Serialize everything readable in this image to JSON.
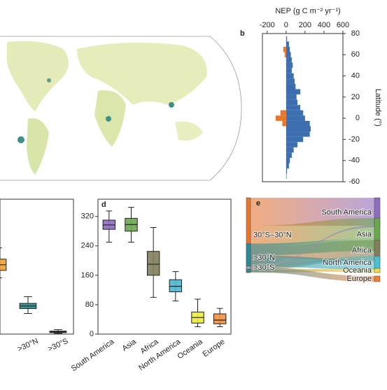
{
  "chart_data": [
    {
      "type": "bar",
      "orientation": "horizontal",
      "panel": "b",
      "title": "NEP (g C m⁻² yr⁻¹)",
      "y_label": "Latitude (°)",
      "y": [
        75,
        70,
        65,
        60,
        55,
        50,
        45,
        40,
        35,
        30,
        25,
        20,
        15,
        10,
        5,
        0,
        -5,
        -10,
        -15,
        -20,
        -25,
        -30,
        -35,
        -40,
        -45,
        -50,
        -55
      ],
      "series": [
        {
          "color": "#3d6fb0",
          "values": [
            10,
            30,
            40,
            50,
            60,
            70,
            60,
            80,
            90,
            100,
            150,
            110,
            120,
            150,
            180,
            200,
            250,
            260,
            250,
            180,
            120,
            80,
            60,
            40,
            30,
            10,
            5
          ]
        },
        {
          "color": "#e8762b",
          "values": [
            null,
            null,
            -30,
            -15,
            null,
            null,
            null,
            null,
            null,
            null,
            null,
            null,
            null,
            null,
            -60,
            -110,
            -40,
            null,
            null,
            null,
            null,
            null,
            null,
            null,
            null,
            null,
            null
          ]
        }
      ],
      "xlim": [
        -250,
        600
      ],
      "xticks": [
        -200,
        0,
        200,
        400,
        600
      ],
      "ylim": [
        -60,
        80
      ],
      "yticks": [
        -60,
        -40,
        -20,
        0,
        20,
        40,
        60,
        80
      ]
    },
    {
      "type": "box",
      "categories": [
        null,
        ">30°N",
        ">30°S"
      ],
      "colors": [
        "#f0a030",
        "#2a8a8c",
        "#333333"
      ],
      "min": [
        150,
        55,
        2
      ],
      "q1": [
        170,
        68,
        4
      ],
      "median": [
        185,
        75,
        6
      ],
      "q3": [
        200,
        82,
        8
      ],
      "max": [
        230,
        100,
        12
      ],
      "ylim": [
        0,
        360
      ]
    },
    {
      "type": "box",
      "panel": "d",
      "categories": [
        "South America",
        "Asia",
        "Africa",
        "North America",
        "Oceania",
        "Europe"
      ],
      "colors": [
        "#8e6bbf",
        "#6aa84f",
        "#7f7f5a",
        "#4bb6d0",
        "#ecec3c",
        "#f39040"
      ],
      "min": [
        250,
        250,
        100,
        90,
        20,
        20
      ],
      "q1": [
        285,
        280,
        160,
        115,
        30,
        28
      ],
      "median": [
        297,
        298,
        190,
        130,
        45,
        38
      ],
      "q3": [
        310,
        315,
        225,
        148,
        60,
        55
      ],
      "max": [
        335,
        345,
        290,
        170,
        95,
        70
      ],
      "ylim": [
        0,
        367
      ],
      "yticks": [
        0,
        80,
        160,
        240,
        320
      ]
    },
    {
      "type": "sankey",
      "panel": "e",
      "nodes": [
        {
          "label": "30°S–30°N",
          "color": "#e8772e"
        },
        {
          "label": ">30°N",
          "color": "#2a8a9a"
        },
        {
          "label": ">30°S",
          "color": "#aaaaaa"
        },
        {
          "label": "South America",
          "color": "#8e6bbf"
        },
        {
          "label": "Asia",
          "color": "#6aa84f"
        },
        {
          "label": "Africa",
          "color": "#7f7f5a"
        },
        {
          "label": "North America",
          "color": "#4bc0d0"
        },
        {
          "label": "Oceania",
          "color": "#f0e040"
        },
        {
          "label": "Europe",
          "color": "#f08030"
        }
      ],
      "links": [
        {
          "source": 0,
          "target": 3,
          "value": 40
        },
        {
          "source": 0,
          "target": 4,
          "value": 30
        },
        {
          "source": 0,
          "target": 5,
          "value": 28
        },
        {
          "source": 0,
          "target": 6,
          "value": 5
        },
        {
          "source": 0,
          "target": 7,
          "value": 4
        },
        {
          "source": 1,
          "target": 4,
          "value": 17
        },
        {
          "source": 1,
          "target": 5,
          "value": 2
        },
        {
          "source": 1,
          "target": 6,
          "value": 14
        },
        {
          "source": 1,
          "target": 8,
          "value": 8
        },
        {
          "source": 2,
          "target": 3,
          "value": 2
        },
        {
          "source": 2,
          "target": 7,
          "value": 2
        }
      ]
    }
  ]
}
